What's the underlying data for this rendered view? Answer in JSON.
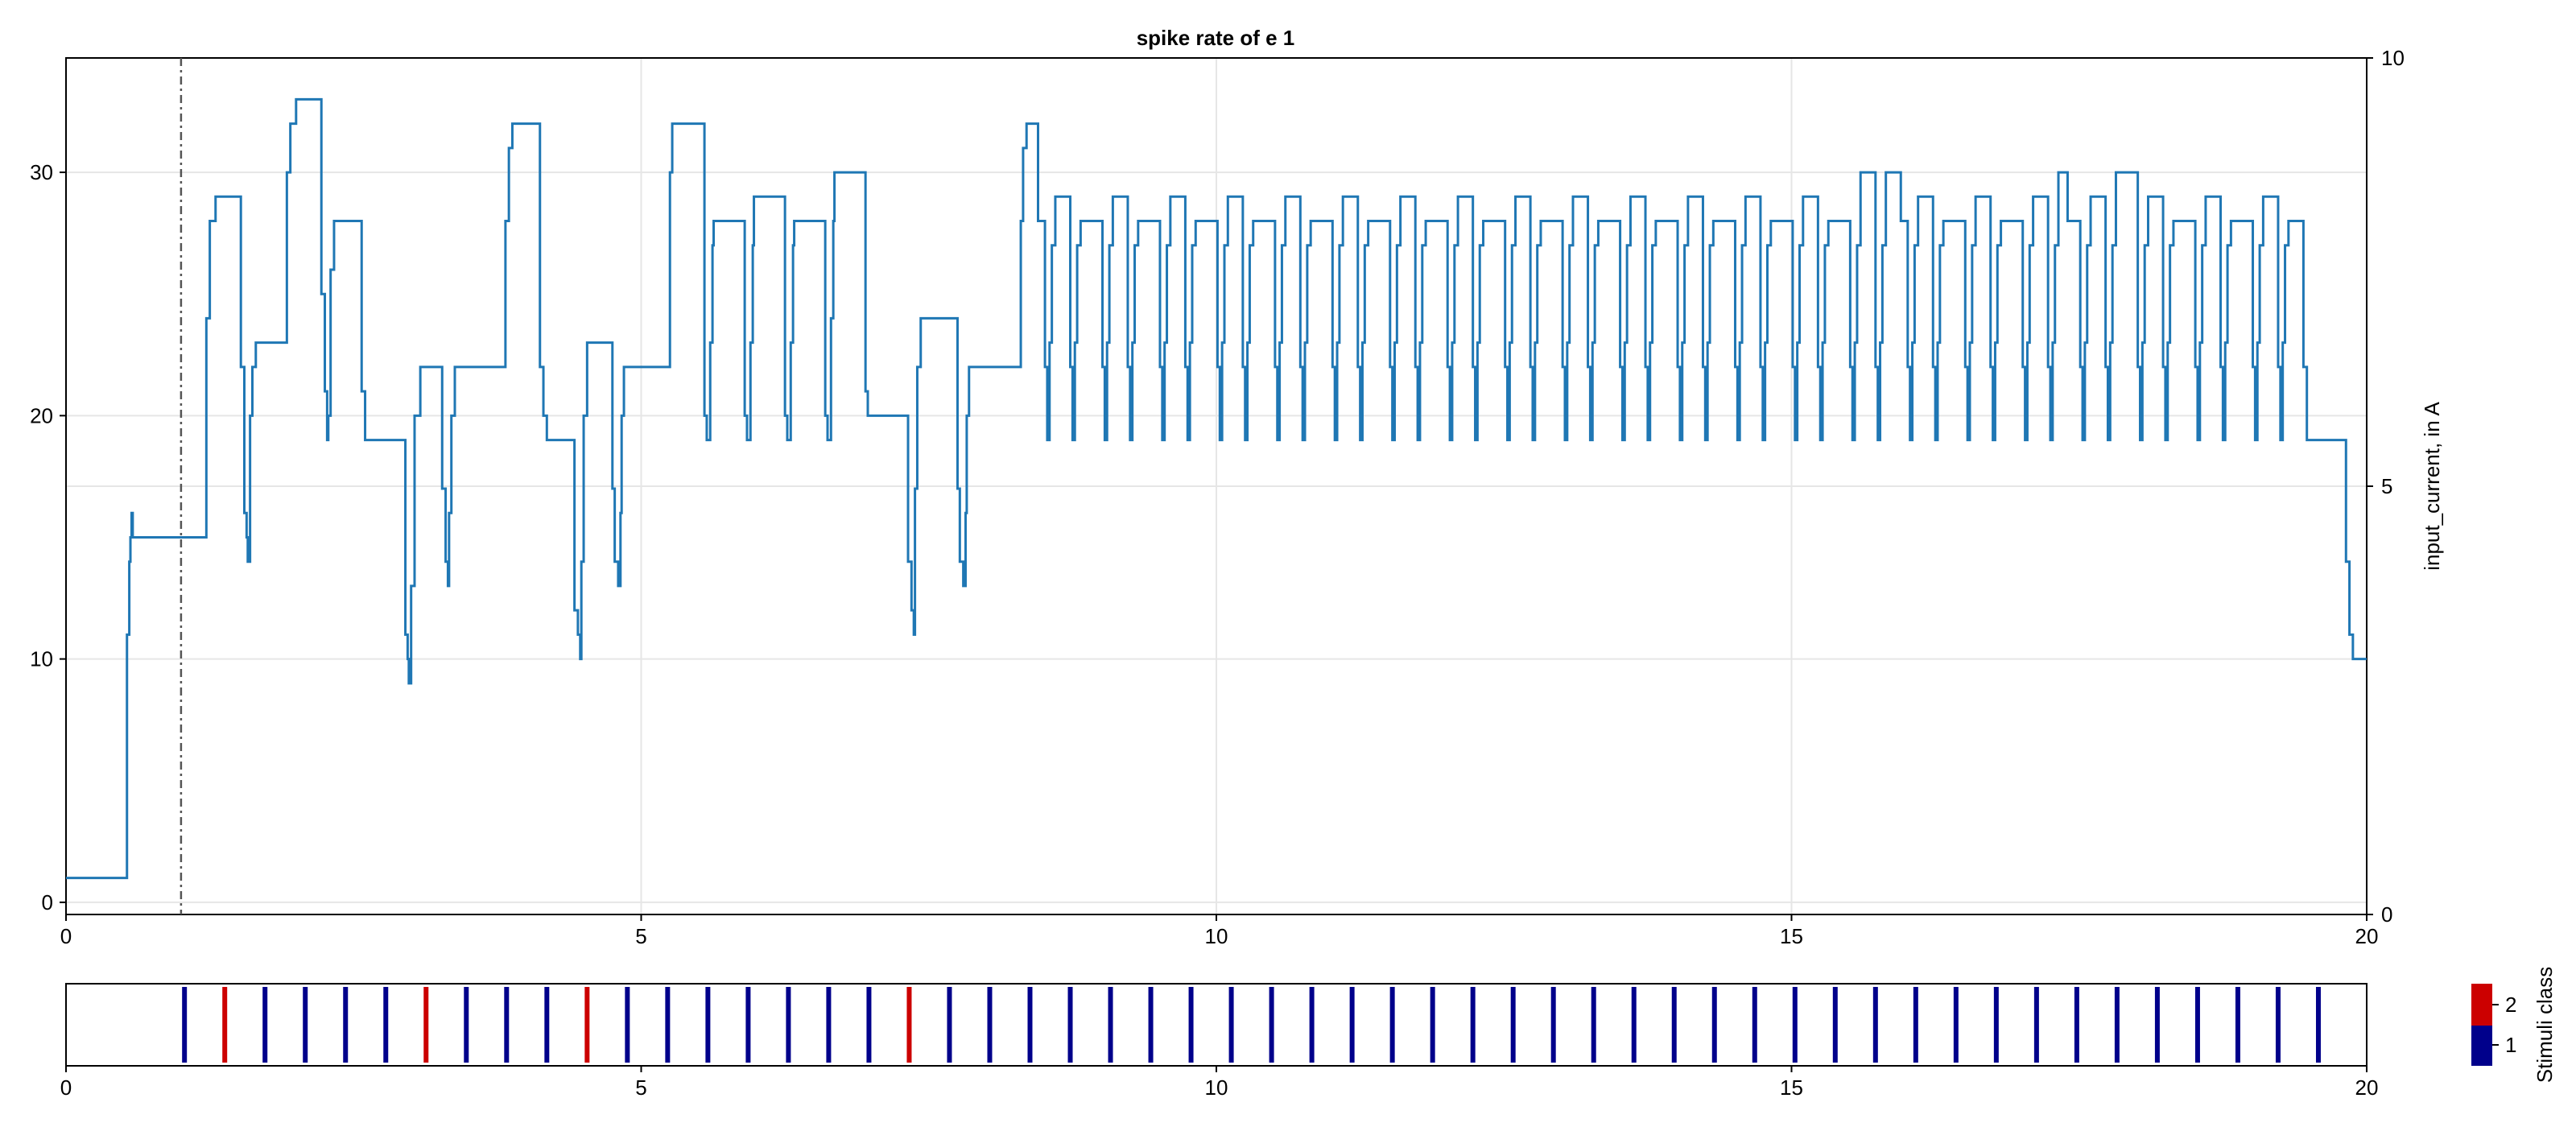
{
  "chart_data": [
    {
      "type": "line",
      "title": "spike rate of e 1",
      "xlabel": "",
      "ylabel": "",
      "y2label": "input_current, in A",
      "xlim": [
        0,
        20
      ],
      "ylim": [
        -0.5,
        34.7
      ],
      "y2lim": [
        0,
        10
      ],
      "xticks": [
        "0",
        "5",
        "10",
        "15",
        "20"
      ],
      "yticks": [
        "0",
        "10",
        "20",
        "30"
      ],
      "y2ticks": [
        "0",
        "5",
        "10"
      ],
      "grid": true,
      "vline_x": 1.0,
      "line_color": "#1f77b4",
      "series": [
        {
          "values_style": "steps",
          "x": [
            0,
            0.5,
            0.53,
            0.55,
            0.56,
            0.57,
            0.58,
            0.6,
            1.2,
            1.22,
            1.25,
            1.3,
            1.35,
            1.5,
            1.52,
            1.55,
            1.57,
            1.58,
            1.6,
            1.62,
            1.65,
            1.7,
            1.9,
            1.92,
            1.95,
            2.0,
            2.2,
            2.22,
            2.25,
            2.27,
            2.28,
            2.3,
            2.33,
            2.37,
            2.4,
            2.55,
            2.57,
            2.6,
            2.9,
            2.92,
            2.95,
            2.97,
            2.98,
            3.0,
            3.03,
            3.08,
            3.12,
            3.25,
            3.27,
            3.3,
            3.32,
            3.33,
            3.35,
            3.38,
            3.42,
            3.47,
            3.8,
            3.82,
            3.85,
            3.88,
            3.92,
            3.95,
            4.1,
            4.12,
            4.15,
            4.18,
            4.2,
            4.4,
            4.42,
            4.45,
            4.47,
            4.48,
            4.5,
            4.53,
            4.57,
            4.6,
            4.75,
            4.77,
            4.8,
            4.82,
            4.83,
            4.85,
            4.88,
            4.92,
            4.95,
            5.25,
            5.27,
            5.3,
            5.32,
            5.35,
            5.4,
            5.55,
            5.57,
            5.6,
            5.62,
            5.63,
            5.65,
            5.68,
            5.72,
            5.75,
            5.9,
            5.92,
            5.95,
            5.97,
            5.98,
            6.0,
            6.03,
            6.07,
            6.1,
            6.25,
            6.27,
            6.3,
            6.32,
            6.33,
            6.35,
            6.38,
            6.42,
            6.45,
            6.6,
            6.62,
            6.65,
            6.67,
            6.68,
            6.7,
            6.73,
            6.77,
            6.8,
            6.95,
            6.97,
            7.0,
            7.3,
            7.32,
            7.35,
            7.37,
            7.38,
            7.4,
            7.43,
            7.47,
            7.5,
            7.75,
            7.77,
            7.8,
            7.82,
            7.83,
            7.85,
            7.88,
            7.92,
            7.95,
            8.3,
            8.32,
            8.35,
            8.38,
            8.42,
            8.45
          ],
          "y": [
            1,
            1,
            11,
            14,
            15,
            16,
            15,
            15,
            15,
            24,
            28,
            29,
            29,
            29,
            22,
            16,
            15,
            14,
            20,
            22,
            23,
            23,
            23,
            30,
            32,
            33,
            33,
            25,
            21,
            19,
            20,
            26,
            28,
            28,
            28,
            28,
            21,
            19,
            19,
            19,
            11,
            10,
            9,
            13,
            20,
            22,
            22,
            22,
            17,
            14,
            13,
            16,
            20,
            22,
            22,
            22,
            22,
            28,
            31,
            32,
            32,
            32,
            32,
            22,
            20,
            19,
            19,
            19,
            12,
            11,
            10,
            14,
            20,
            23,
            23,
            23,
            17,
            14,
            13,
            16,
            20,
            22,
            22,
            22,
            22,
            30,
            32,
            32,
            32,
            32,
            32,
            20,
            19,
            23,
            27,
            28,
            28,
            28,
            28,
            28,
            20,
            19,
            23,
            27,
            29,
            29,
            29,
            29,
            29,
            20,
            19,
            23,
            27,
            28,
            28,
            28,
            28,
            28,
            20,
            19,
            24,
            28,
            30,
            30,
            30,
            30,
            30,
            21,
            20,
            20,
            20,
            14,
            12,
            11,
            17,
            22,
            24,
            24,
            24,
            17,
            14,
            13,
            16,
            20,
            22,
            22,
            22,
            22,
            28,
            31,
            32,
            32,
            32,
            32
          ]
        }
      ]
    },
    {
      "type": "heatmap",
      "xlim": [
        0,
        20
      ],
      "xticks": [
        "0",
        "5",
        "10",
        "15",
        "20"
      ],
      "colorbar_label": "Stimuli class",
      "colorbar_ticks": [
        "1",
        "2"
      ],
      "class_colors": {
        "1": "#00008b",
        "2": "#cc0000"
      },
      "stimuli": [
        {
          "x": 1.03,
          "class": 1
        },
        {
          "x": 1.38,
          "class": 2
        },
        {
          "x": 1.73,
          "class": 1
        },
        {
          "x": 2.08,
          "class": 1
        },
        {
          "x": 2.43,
          "class": 1
        },
        {
          "x": 2.78,
          "class": 1
        },
        {
          "x": 3.13,
          "class": 2
        },
        {
          "x": 3.48,
          "class": 1
        },
        {
          "x": 3.83,
          "class": 1
        },
        {
          "x": 4.18,
          "class": 1
        },
        {
          "x": 4.53,
          "class": 2
        },
        {
          "x": 4.88,
          "class": 1
        },
        {
          "x": 5.23,
          "class": 1
        },
        {
          "x": 5.58,
          "class": 1
        },
        {
          "x": 5.93,
          "class": 1
        },
        {
          "x": 6.28,
          "class": 1
        },
        {
          "x": 6.63,
          "class": 1
        },
        {
          "x": 6.98,
          "class": 1
        },
        {
          "x": 7.33,
          "class": 2
        },
        {
          "x": 7.68,
          "class": 1
        },
        {
          "x": 8.03,
          "class": 1
        },
        {
          "x": 8.38,
          "class": 1
        },
        {
          "x": 8.73,
          "class": 1
        },
        {
          "x": 9.08,
          "class": 1
        },
        {
          "x": 9.43,
          "class": 1
        },
        {
          "x": 9.78,
          "class": 1
        },
        {
          "x": 10.13,
          "class": 1
        },
        {
          "x": 10.48,
          "class": 1
        },
        {
          "x": 10.83,
          "class": 1
        },
        {
          "x": 11.18,
          "class": 1
        },
        {
          "x": 11.53,
          "class": 1
        },
        {
          "x": 11.88,
          "class": 1
        },
        {
          "x": 12.23,
          "class": 1
        },
        {
          "x": 12.58,
          "class": 1
        },
        {
          "x": 12.93,
          "class": 1
        },
        {
          "x": 13.28,
          "class": 1
        },
        {
          "x": 13.63,
          "class": 1
        },
        {
          "x": 13.98,
          "class": 1
        },
        {
          "x": 14.33,
          "class": 1
        },
        {
          "x": 14.68,
          "class": 1
        },
        {
          "x": 15.03,
          "class": 1
        },
        {
          "x": 15.38,
          "class": 1
        },
        {
          "x": 15.73,
          "class": 1
        },
        {
          "x": 16.08,
          "class": 1
        },
        {
          "x": 16.43,
          "class": 1
        },
        {
          "x": 16.78,
          "class": 1
        },
        {
          "x": 17.13,
          "class": 1
        },
        {
          "x": 17.48,
          "class": 1
        },
        {
          "x": 17.83,
          "class": 1
        },
        {
          "x": 18.18,
          "class": 1
        },
        {
          "x": 18.53,
          "class": 1
        },
        {
          "x": 18.88,
          "class": 1
        },
        {
          "x": 19.23,
          "class": 1
        },
        {
          "x": 19.58,
          "class": 1
        }
      ]
    }
  ]
}
